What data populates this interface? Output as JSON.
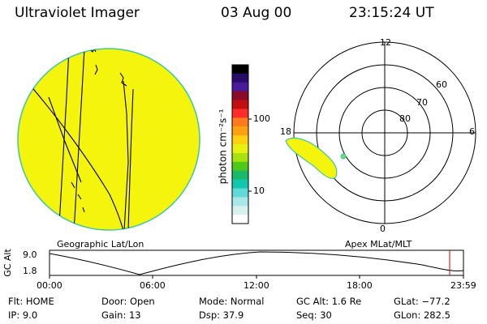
{
  "header": {
    "title": "Ultraviolet Imager",
    "date": "03 Aug 00",
    "time": "23:15:24 UT"
  },
  "left_panel": {
    "caption": "Geographic Lat/Lon"
  },
  "right_panel": {
    "caption": "Apex MLat/MLT",
    "lat_labels": [
      "80",
      "70",
      "60"
    ],
    "mlt_labels": {
      "top": "12",
      "bottom": "0",
      "left": "18",
      "right": "6"
    }
  },
  "colorbar": {
    "unit_label": "photon cm⁻²s⁻¹",
    "ticks": [
      "100",
      "10"
    ],
    "colors": [
      "#000000",
      "#2a0a6a",
      "#4a1a9a",
      "#8a0a2a",
      "#c01010",
      "#ff2a2a",
      "#ff7a1a",
      "#ffa010",
      "#ffd010",
      "#e8f010",
      "#a8e010",
      "#50c81a",
      "#1ab86a",
      "#10c8b0",
      "#60d8d8",
      "#a8e8e8",
      "#d8f0f0",
      "#ffffff"
    ]
  },
  "altitude_plot": {
    "ylabel": "GC Alt",
    "yticks": [
      "9.0",
      "1.8"
    ],
    "xticks": [
      "00:00",
      "06:00",
      "12:00",
      "18:00",
      "23:59"
    ],
    "current_time_fraction": 0.955
  },
  "status": {
    "filter": "Flt: HOME",
    "ip": "IP:  9.0",
    "door": "Door: Open",
    "gain": "Gain: 13",
    "mode": "Mode: Normal",
    "dsp": "Dsp:   37.9",
    "gc_alt": "GC Alt: 1.6 Re",
    "seq": "Seq: 30",
    "glat": "GLat: −77.2",
    "glon": "GLon: 282.5"
  }
}
